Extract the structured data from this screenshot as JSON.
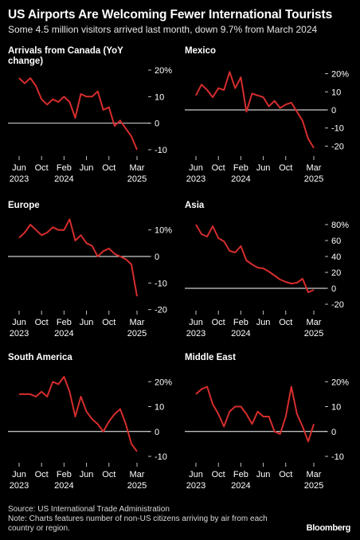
{
  "header": {
    "title": "US Airports Are Welcoming Fewer International Tourists",
    "subtitle": "Some 4.5 million visitors arrived last month, down 9.7% from March 2024"
  },
  "footer": {
    "source": "Source: US International Trade Administration",
    "note": "Note: Charts features number of non-US citizens arriving by air from each country or region.",
    "brand": "Bloomberg"
  },
  "colors": {
    "line": "#d62d2d",
    "zero": "#ffffff",
    "tick": "#bfbfbf"
  },
  "chart_data": [
    {
      "type": "line",
      "title": "Arrivals from Canada (YoY change)",
      "x": [
        "2023-06",
        "2023-07",
        "2023-08",
        "2023-09",
        "2023-10",
        "2023-11",
        "2023-12",
        "2024-01",
        "2024-02",
        "2024-03",
        "2024-04",
        "2024-05",
        "2024-06",
        "2024-07",
        "2024-08",
        "2024-09",
        "2024-10",
        "2024-11",
        "2024-12",
        "2025-01",
        "2025-02",
        "2025-03"
      ],
      "values": [
        17,
        15,
        17,
        14,
        9,
        7,
        9,
        8,
        10,
        8,
        2,
        11,
        10,
        10,
        12,
        5,
        6,
        -1,
        1,
        -2,
        -5,
        -10
      ],
      "ylim": [
        -10,
        20
      ],
      "yticks": [
        "20%",
        "10",
        "0",
        "-10"
      ],
      "ytick_values": [
        20,
        10,
        0,
        -10
      ],
      "xticks": [
        {
          "label": "Jun",
          "sub": "2023",
          "x": "2023-06"
        },
        {
          "label": "Oct",
          "sub": "",
          "x": "2023-10"
        },
        {
          "label": "Feb",
          "sub": "2024",
          "x": "2024-02"
        },
        {
          "label": "Jun",
          "sub": "",
          "x": "2024-06"
        },
        {
          "label": "Oct",
          "sub": "",
          "x": "2024-10"
        },
        {
          "label": "Mar",
          "sub": "2025",
          "x": "2025-03"
        }
      ]
    },
    {
      "type": "line",
      "title": "Mexico",
      "x": [
        "2023-06",
        "2023-07",
        "2023-08",
        "2023-09",
        "2023-10",
        "2023-11",
        "2023-12",
        "2024-01",
        "2024-02",
        "2024-03",
        "2024-04",
        "2024-05",
        "2024-06",
        "2024-07",
        "2024-08",
        "2024-09",
        "2024-10",
        "2024-11",
        "2024-12",
        "2025-01",
        "2025-02",
        "2025-03"
      ],
      "values": [
        8,
        14,
        11,
        7,
        12,
        11,
        21,
        12,
        18,
        -1,
        9,
        8,
        7,
        2,
        5,
        1,
        3,
        4,
        -1,
        -6,
        -16,
        -21
      ],
      "ylim": [
        -22,
        22
      ],
      "yticks": [
        "20%",
        "10",
        "0",
        "-10",
        "-20"
      ],
      "ytick_values": [
        20,
        10,
        0,
        -10,
        -20
      ],
      "xticks": [
        {
          "label": "Jun",
          "sub": "2023",
          "x": "2023-06"
        },
        {
          "label": "Oct",
          "sub": "",
          "x": "2023-10"
        },
        {
          "label": "Feb",
          "sub": "2024",
          "x": "2024-02"
        },
        {
          "label": "Jun",
          "sub": "",
          "x": "2024-06"
        },
        {
          "label": "Oct",
          "sub": "",
          "x": "2024-10"
        },
        {
          "label": "Mar",
          "sub": "2025",
          "x": "2025-03"
        }
      ]
    },
    {
      "type": "line",
      "title": "Europe",
      "x": [
        "2023-06",
        "2023-07",
        "2023-08",
        "2023-09",
        "2023-10",
        "2023-11",
        "2023-12",
        "2024-01",
        "2024-02",
        "2024-03",
        "2024-04",
        "2024-05",
        "2024-06",
        "2024-07",
        "2024-08",
        "2024-09",
        "2024-10",
        "2024-11",
        "2024-12",
        "2025-01",
        "2025-02",
        "2025-03"
      ],
      "values": [
        7,
        9,
        12,
        10,
        8,
        9,
        11,
        10,
        10,
        14,
        6,
        8,
        5,
        4,
        0,
        2,
        3,
        1,
        0,
        -1,
        -3,
        -15
      ],
      "ylim": [
        -18,
        12
      ],
      "yticks": [
        "10%",
        "0",
        "-10",
        "-20"
      ],
      "ytick_values": [
        10,
        0,
        -10,
        -20
      ],
      "xticks": [
        {
          "label": "Jun",
          "sub": "2023",
          "x": "2023-06"
        },
        {
          "label": "Oct",
          "sub": "",
          "x": "2023-10"
        },
        {
          "label": "Feb",
          "sub": "2024",
          "x": "2024-02"
        },
        {
          "label": "Jun",
          "sub": "",
          "x": "2024-06"
        },
        {
          "label": "Oct",
          "sub": "",
          "x": "2024-10"
        },
        {
          "label": "Mar",
          "sub": "2025",
          "x": "2025-03"
        }
      ]
    },
    {
      "type": "line",
      "title": "Asia",
      "x": [
        "2023-06",
        "2023-07",
        "2023-08",
        "2023-09",
        "2023-10",
        "2023-11",
        "2023-12",
        "2024-01",
        "2024-02",
        "2024-03",
        "2024-04",
        "2024-05",
        "2024-06",
        "2024-07",
        "2024-08",
        "2024-09",
        "2024-10",
        "2024-11",
        "2024-12",
        "2025-01",
        "2025-02",
        "2025-03"
      ],
      "values": [
        80,
        68,
        65,
        78,
        63,
        59,
        47,
        45,
        53,
        35,
        30,
        26,
        25,
        21,
        16,
        11,
        8,
        6,
        7,
        12,
        -5,
        -2
      ],
      "ylim": [
        -20,
        80
      ],
      "yticks": [
        "80%",
        "60",
        "40",
        "20",
        "0",
        "-20"
      ],
      "ytick_values": [
        80,
        60,
        40,
        20,
        0,
        -20
      ],
      "xticks": [
        {
          "label": "Jun",
          "sub": "2023",
          "x": "2023-06"
        },
        {
          "label": "Oct",
          "sub": "",
          "x": "2023-10"
        },
        {
          "label": "Feb",
          "sub": "2024",
          "x": "2024-02"
        },
        {
          "label": "Jun",
          "sub": "",
          "x": "2024-06"
        },
        {
          "label": "Oct",
          "sub": "",
          "x": "2024-10"
        },
        {
          "label": "Mar",
          "sub": "2025",
          "x": "2025-03"
        }
      ]
    },
    {
      "type": "line",
      "title": "South America",
      "x": [
        "2023-06",
        "2023-07",
        "2023-08",
        "2023-09",
        "2023-10",
        "2023-11",
        "2023-12",
        "2024-01",
        "2024-02",
        "2024-03",
        "2024-04",
        "2024-05",
        "2024-06",
        "2024-07",
        "2024-08",
        "2024-09",
        "2024-10",
        "2024-11",
        "2024-12",
        "2025-01",
        "2025-02",
        "2025-03"
      ],
      "values": [
        15,
        15,
        15,
        14,
        16,
        14,
        20,
        19,
        22,
        16,
        6,
        14,
        8,
        5,
        3,
        0,
        4,
        7,
        9,
        3,
        -5,
        -8
      ],
      "ylim": [
        -10,
        22
      ],
      "yticks": [
        "20%",
        "10",
        "0",
        "-10"
      ],
      "ytick_values": [
        20,
        10,
        0,
        -10
      ],
      "xticks": [
        {
          "label": "Jun",
          "sub": "2023",
          "x": "2023-06"
        },
        {
          "label": "Oct",
          "sub": "",
          "x": "2023-10"
        },
        {
          "label": "Feb",
          "sub": "2024",
          "x": "2024-02"
        },
        {
          "label": "Jun",
          "sub": "",
          "x": "2024-06"
        },
        {
          "label": "Oct",
          "sub": "",
          "x": "2024-10"
        },
        {
          "label": "Mar",
          "sub": "2025",
          "x": "2025-03"
        }
      ]
    },
    {
      "type": "line",
      "title": "Middle East",
      "x": [
        "2023-06",
        "2023-07",
        "2023-08",
        "2023-09",
        "2023-10",
        "2023-11",
        "2023-12",
        "2024-01",
        "2024-02",
        "2024-03",
        "2024-04",
        "2024-05",
        "2024-06",
        "2024-07",
        "2024-08",
        "2024-09",
        "2024-10",
        "2024-11",
        "2024-12",
        "2025-01",
        "2025-02",
        "2025-03"
      ],
      "values": [
        15,
        17,
        18,
        11,
        7,
        2,
        8,
        10,
        10,
        7,
        3,
        8,
        6,
        6,
        0,
        -1,
        6,
        18,
        7,
        2,
        -4,
        3
      ],
      "ylim": [
        -10,
        22
      ],
      "yticks": [
        "20%",
        "10",
        "0",
        "-10"
      ],
      "ytick_values": [
        20,
        10,
        0,
        -10
      ],
      "xticks": [
        {
          "label": "Jun",
          "sub": "2023",
          "x": "2023-06"
        },
        {
          "label": "Oct",
          "sub": "",
          "x": "2023-10"
        },
        {
          "label": "Feb",
          "sub": "2024",
          "x": "2024-02"
        },
        {
          "label": "Jun",
          "sub": "",
          "x": "2024-06"
        },
        {
          "label": "Oct",
          "sub": "",
          "x": "2024-10"
        },
        {
          "label": "Mar",
          "sub": "2025",
          "x": "2025-03"
        }
      ]
    }
  ]
}
